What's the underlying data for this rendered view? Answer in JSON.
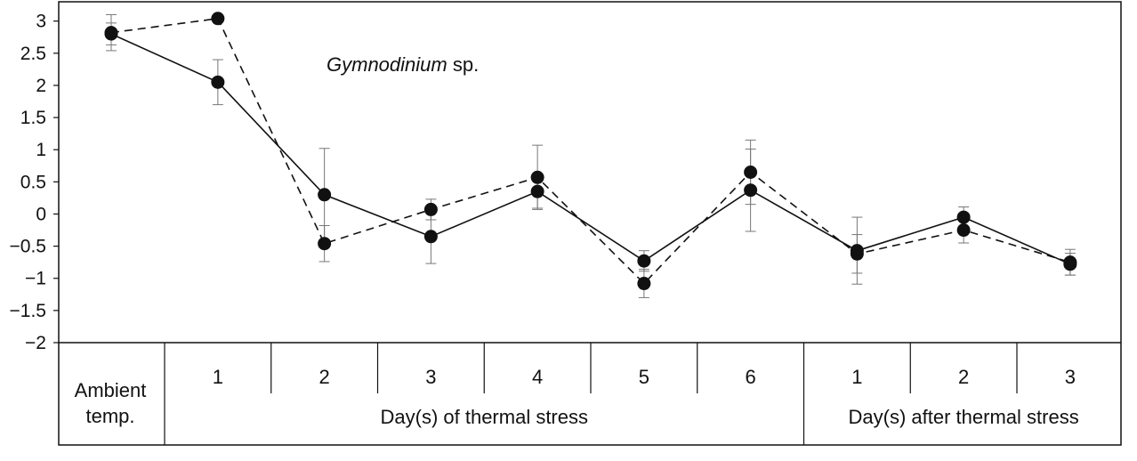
{
  "chart_data": {
    "type": "line",
    "title": "",
    "annotation": {
      "italic": "Gymnodinium",
      "rest": " sp."
    },
    "ylim": [
      -2,
      3.3
    ],
    "yticks": [
      "3",
      "2.5",
      "2",
      "1.5",
      "1",
      "0.5",
      "0",
      "-0.5",
      "-1",
      "-1.5",
      "-2"
    ],
    "categories": [
      "Ambient temp.",
      "1",
      "2",
      "3",
      "4",
      "5",
      "6",
      "1",
      "2",
      "3"
    ],
    "groups": [
      {
        "label": "Day(s) of thermal stress",
        "from": 1,
        "to": 6
      },
      {
        "label": "Day(s) after thermal stress",
        "from": 7,
        "to": 9
      }
    ],
    "series": [
      {
        "style": "solid",
        "values": [
          2.8,
          2.05,
          0.3,
          -0.35,
          0.35,
          -0.73,
          0.37,
          -0.57,
          -0.05,
          -0.78
        ],
        "err": [
          0.17,
          0.35,
          0.72,
          0.42,
          0.26,
          0.16,
          0.64,
          0.52,
          0.16,
          0.17
        ]
      },
      {
        "style": "dashed",
        "values": [
          2.82,
          3.04,
          -0.46,
          0.07,
          0.57,
          -1.08,
          0.65,
          -0.62,
          -0.25,
          -0.75
        ],
        "err": [
          0.28,
          0.0,
          0.28,
          0.16,
          0.5,
          0.22,
          0.5,
          0.3,
          0.2,
          0.2
        ]
      }
    ]
  }
}
